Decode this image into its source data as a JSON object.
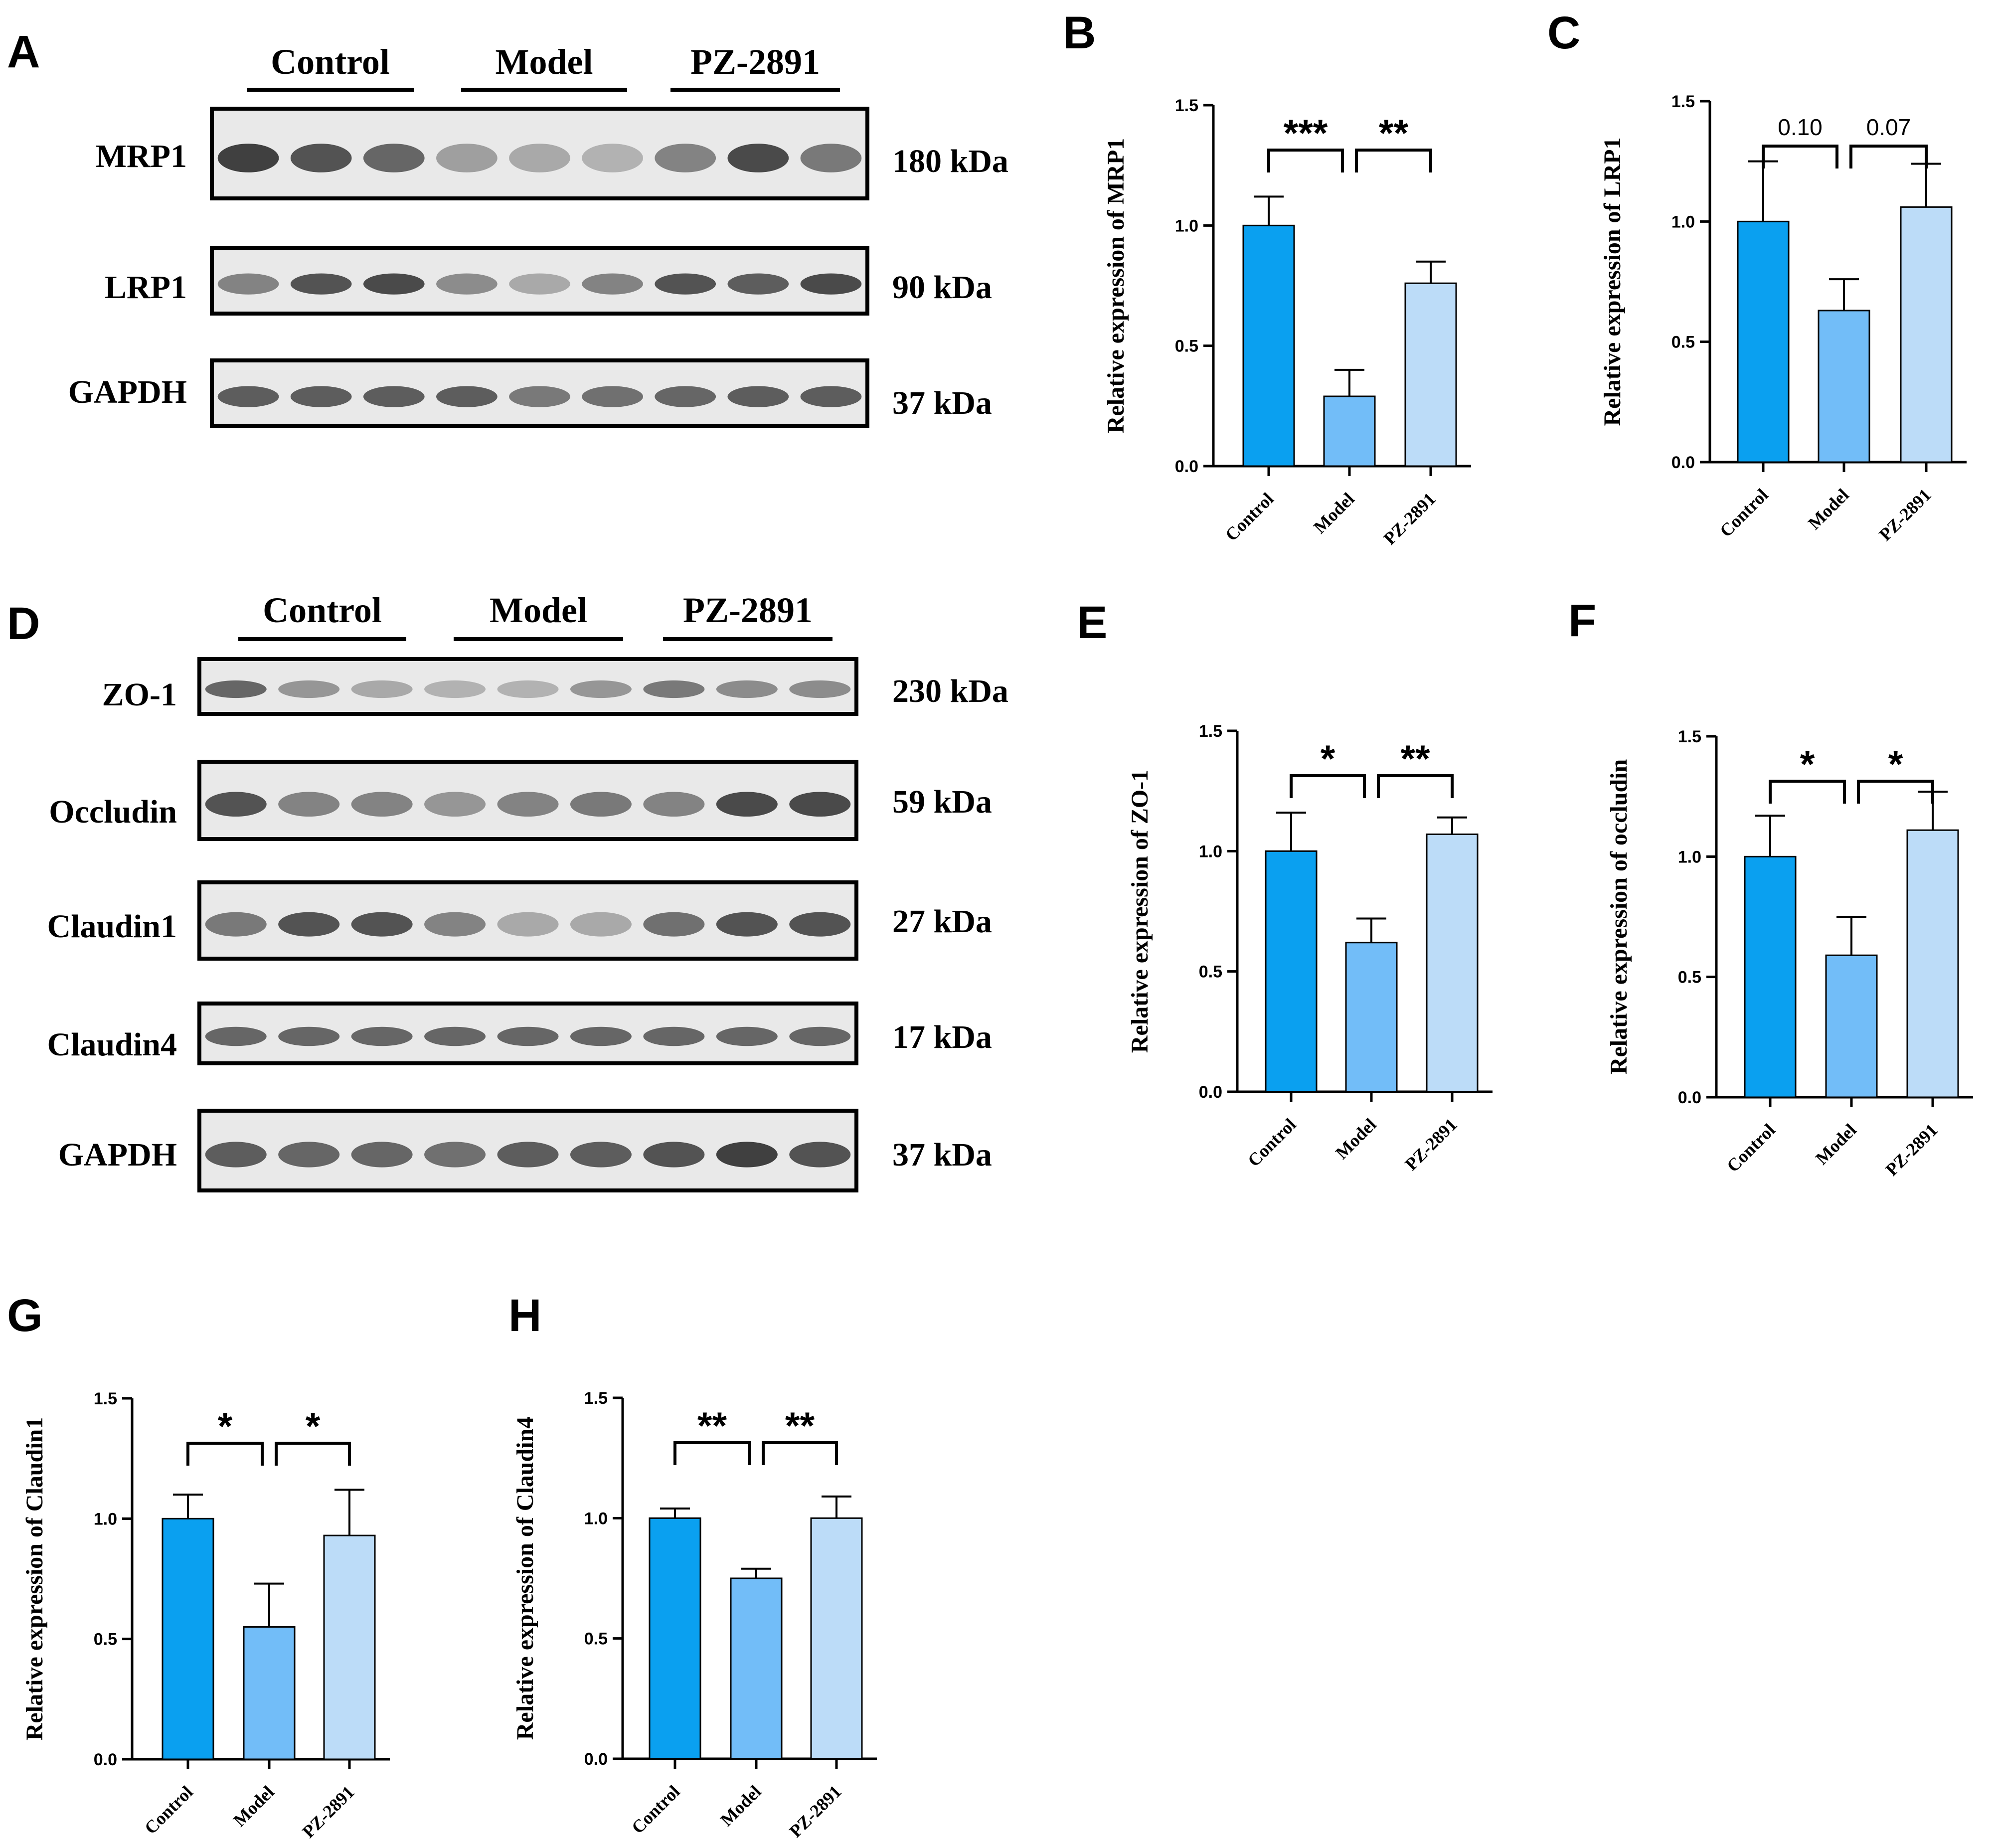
{
  "colors": {
    "control": "#0aa0f0",
    "model": "#72bdf8",
    "pz": "#bcdcf8",
    "stroke": "#000000"
  },
  "blots": [
    {
      "panel": "A",
      "groups": [
        "Control",
        "Model",
        "PZ-2891"
      ],
      "rows": [
        {
          "protein": "MRP1",
          "size": "180 kDa"
        },
        {
          "protein": "LRP1",
          "size": "90 kDa"
        },
        {
          "protein": "GAPDH",
          "size": "37 kDa"
        }
      ]
    },
    {
      "panel": "D",
      "groups": [
        "Control",
        "Model",
        "PZ-2891"
      ],
      "rows": [
        {
          "protein": "ZO-1",
          "size": "230 kDa"
        },
        {
          "protein": "Occludin",
          "size": "59 kDa"
        },
        {
          "protein": "Claudin1",
          "size": "27 kDa"
        },
        {
          "protein": "Claudin4",
          "size": "17 kDa"
        },
        {
          "protein": "GAPDH",
          "size": "37 kDa"
        }
      ]
    }
  ],
  "chart_data": [
    {
      "panel": "B",
      "type": "bar",
      "ylabel": "Relative expression of MRP1",
      "categories": [
        "Control",
        "Model",
        "PZ-2891"
      ],
      "values": [
        1.0,
        0.29,
        0.76
      ],
      "errors": [
        0.12,
        0.11,
        0.09
      ],
      "ylim": [
        0,
        1.5
      ],
      "yticks": [
        "0.0",
        "0.5",
        "1.0",
        "1.5"
      ],
      "comparisons": [
        "***",
        "**"
      ]
    },
    {
      "panel": "C",
      "type": "bar",
      "ylabel": "Relative expression of LRP1",
      "categories": [
        "Control",
        "Model",
        "PZ-2891"
      ],
      "values": [
        1.0,
        0.63,
        1.06
      ],
      "errors": [
        0.25,
        0.13,
        0.18
      ],
      "ylim": [
        0,
        1.5
      ],
      "yticks": [
        "0.0",
        "0.5",
        "1.0",
        "1.5"
      ],
      "comparisons": [
        "0.10",
        "0.07"
      ]
    },
    {
      "panel": "E",
      "type": "bar",
      "ylabel": "Relative expression of ZO-1",
      "categories": [
        "Control",
        "Model",
        "PZ-2891"
      ],
      "values": [
        1.0,
        0.62,
        1.07
      ],
      "errors": [
        0.16,
        0.1,
        0.07
      ],
      "ylim": [
        0,
        1.5
      ],
      "yticks": [
        "0.0",
        "0.5",
        "1.0",
        "1.5"
      ],
      "comparisons": [
        "*",
        "**"
      ]
    },
    {
      "panel": "F",
      "type": "bar",
      "ylabel": "Relative expression of occludin",
      "categories": [
        "Control",
        "Model",
        "PZ-2891"
      ],
      "values": [
        1.0,
        0.59,
        1.11
      ],
      "errors": [
        0.17,
        0.16,
        0.16
      ],
      "ylim": [
        0,
        1.5
      ],
      "yticks": [
        "0.0",
        "0.5",
        "1.0",
        "1.5"
      ],
      "comparisons": [
        "*",
        "*"
      ]
    },
    {
      "panel": "G",
      "type": "bar",
      "ylabel": "Relative expression of Claudin1",
      "categories": [
        "Control",
        "Model",
        "PZ-2891"
      ],
      "values": [
        1.0,
        0.55,
        0.93
      ],
      "errors": [
        0.1,
        0.18,
        0.19
      ],
      "ylim": [
        0,
        1.5
      ],
      "yticks": [
        "0.0",
        "0.5",
        "1.0",
        "1.5"
      ],
      "comparisons": [
        "*",
        "*"
      ]
    },
    {
      "panel": "H",
      "type": "bar",
      "ylabel": "Relative expression of Claudin4",
      "categories": [
        "Control",
        "Model",
        "PZ-2891"
      ],
      "values": [
        1.0,
        0.75,
        1.0
      ],
      "errors": [
        0.04,
        0.04,
        0.09
      ],
      "ylim": [
        0,
        1.5
      ],
      "yticks": [
        "0.0",
        "0.5",
        "1.0",
        "1.5"
      ],
      "comparisons": [
        "**",
        "**"
      ]
    }
  ]
}
